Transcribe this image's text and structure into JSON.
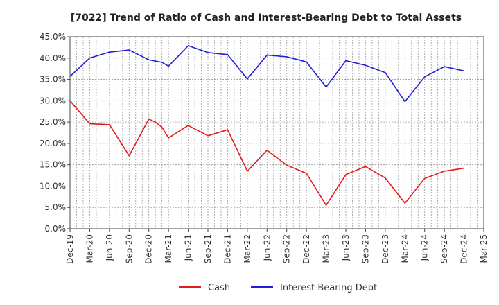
{
  "chart_data": {
    "type": "line",
    "title": "[7022]  Trend of Ratio of Cash and Interest-Bearing Debt to Total Assets",
    "xlabel": "",
    "ylabel": "",
    "ylim": [
      0,
      45
    ],
    "y_ticks": [
      0,
      5,
      10,
      15,
      20,
      25,
      30,
      35,
      40,
      45
    ],
    "y_tick_labels": [
      "0.0%",
      "5.0%",
      "10.0%",
      "15.0%",
      "20.0%",
      "25.0%",
      "30.0%",
      "35.0%",
      "40.0%",
      "45.0%"
    ],
    "x_range": [
      0,
      63
    ],
    "x_ticks": [
      0,
      3,
      6,
      9,
      12,
      15,
      18,
      21,
      24,
      27,
      30,
      33,
      36,
      39,
      42,
      45,
      48,
      51,
      54,
      57,
      60,
      63
    ],
    "x_tick_labels": [
      "Dec-19",
      "Mar-20",
      "Jun-20",
      "Sep-20",
      "Dec-20",
      "Mar-21",
      "Jun-21",
      "Sep-21",
      "Dec-21",
      "Mar-22",
      "Jun-22",
      "Sep-22",
      "Dec-22",
      "Mar-23",
      "Jun-23",
      "Sep-23",
      "Dec-23",
      "Mar-24",
      "Jun-24",
      "Sep-24",
      "Dec-24",
      "Mar-25"
    ],
    "grid": true,
    "legend_position": "bottom-center",
    "series": [
      {
        "name": "Cash",
        "color": "#e31a1c",
        "x": [
          0,
          3,
          6,
          9,
          12,
          13,
          14,
          15,
          18,
          21,
          24,
          27,
          30,
          33,
          36,
          39,
          42,
          45,
          48,
          51,
          54,
          57,
          60
        ],
        "values": [
          30.0,
          24.6,
          24.4,
          17.1,
          25.7,
          25.0,
          23.8,
          21.3,
          24.2,
          21.8,
          23.2,
          13.5,
          18.4,
          14.9,
          13.0,
          5.5,
          12.7,
          14.6,
          11.9,
          6.0,
          11.8,
          13.5,
          14.2
        ]
      },
      {
        "name": "Interest-Bearing Debt",
        "color": "#1f1fd6",
        "x": [
          0,
          3,
          6,
          9,
          12,
          14,
          15,
          18,
          21,
          24,
          27,
          30,
          33,
          36,
          39,
          42,
          45,
          48,
          51,
          54,
          57,
          60
        ],
        "values": [
          35.7,
          40.0,
          41.4,
          41.9,
          39.6,
          39.0,
          38.1,
          42.9,
          41.3,
          40.8,
          35.1,
          40.7,
          40.3,
          39.1,
          33.2,
          39.4,
          38.3,
          36.6,
          29.8,
          35.6,
          38.0,
          37.0
        ]
      }
    ]
  }
}
